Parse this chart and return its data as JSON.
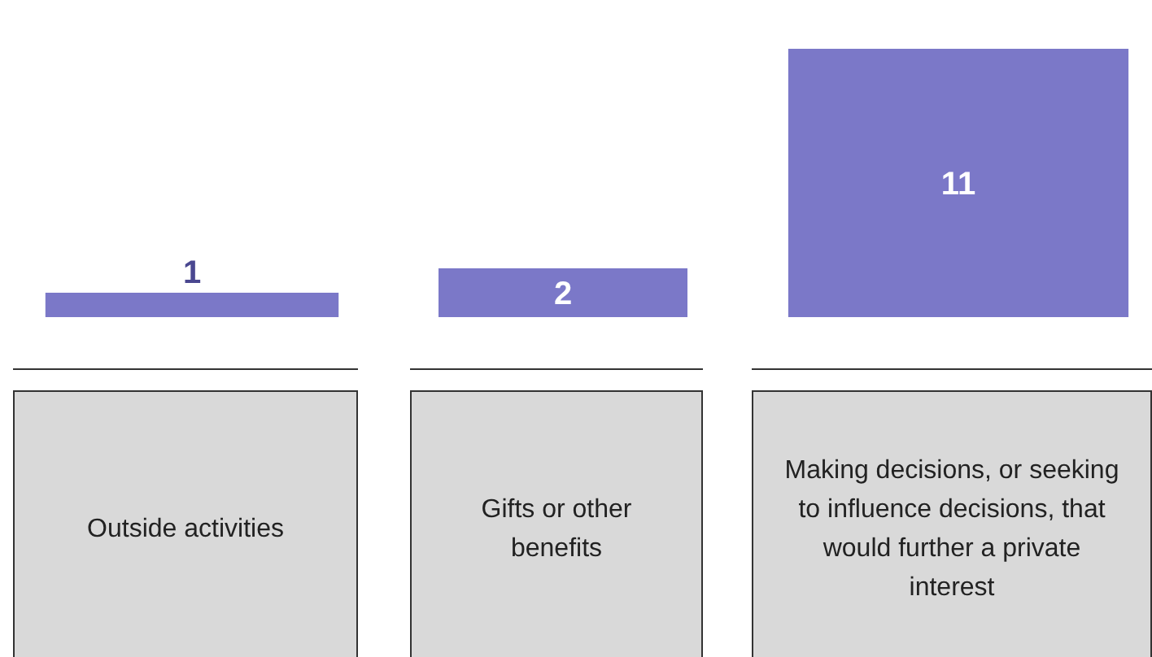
{
  "chart_data": {
    "type": "bar",
    "categories": [
      "Outside activities",
      "Gifts or other benefits",
      "Making decisions, or seeking to influence decisions, that would further a private interest"
    ],
    "values": [
      1,
      2,
      11
    ],
    "color": "#7b78c8",
    "data_labels": true
  }
}
